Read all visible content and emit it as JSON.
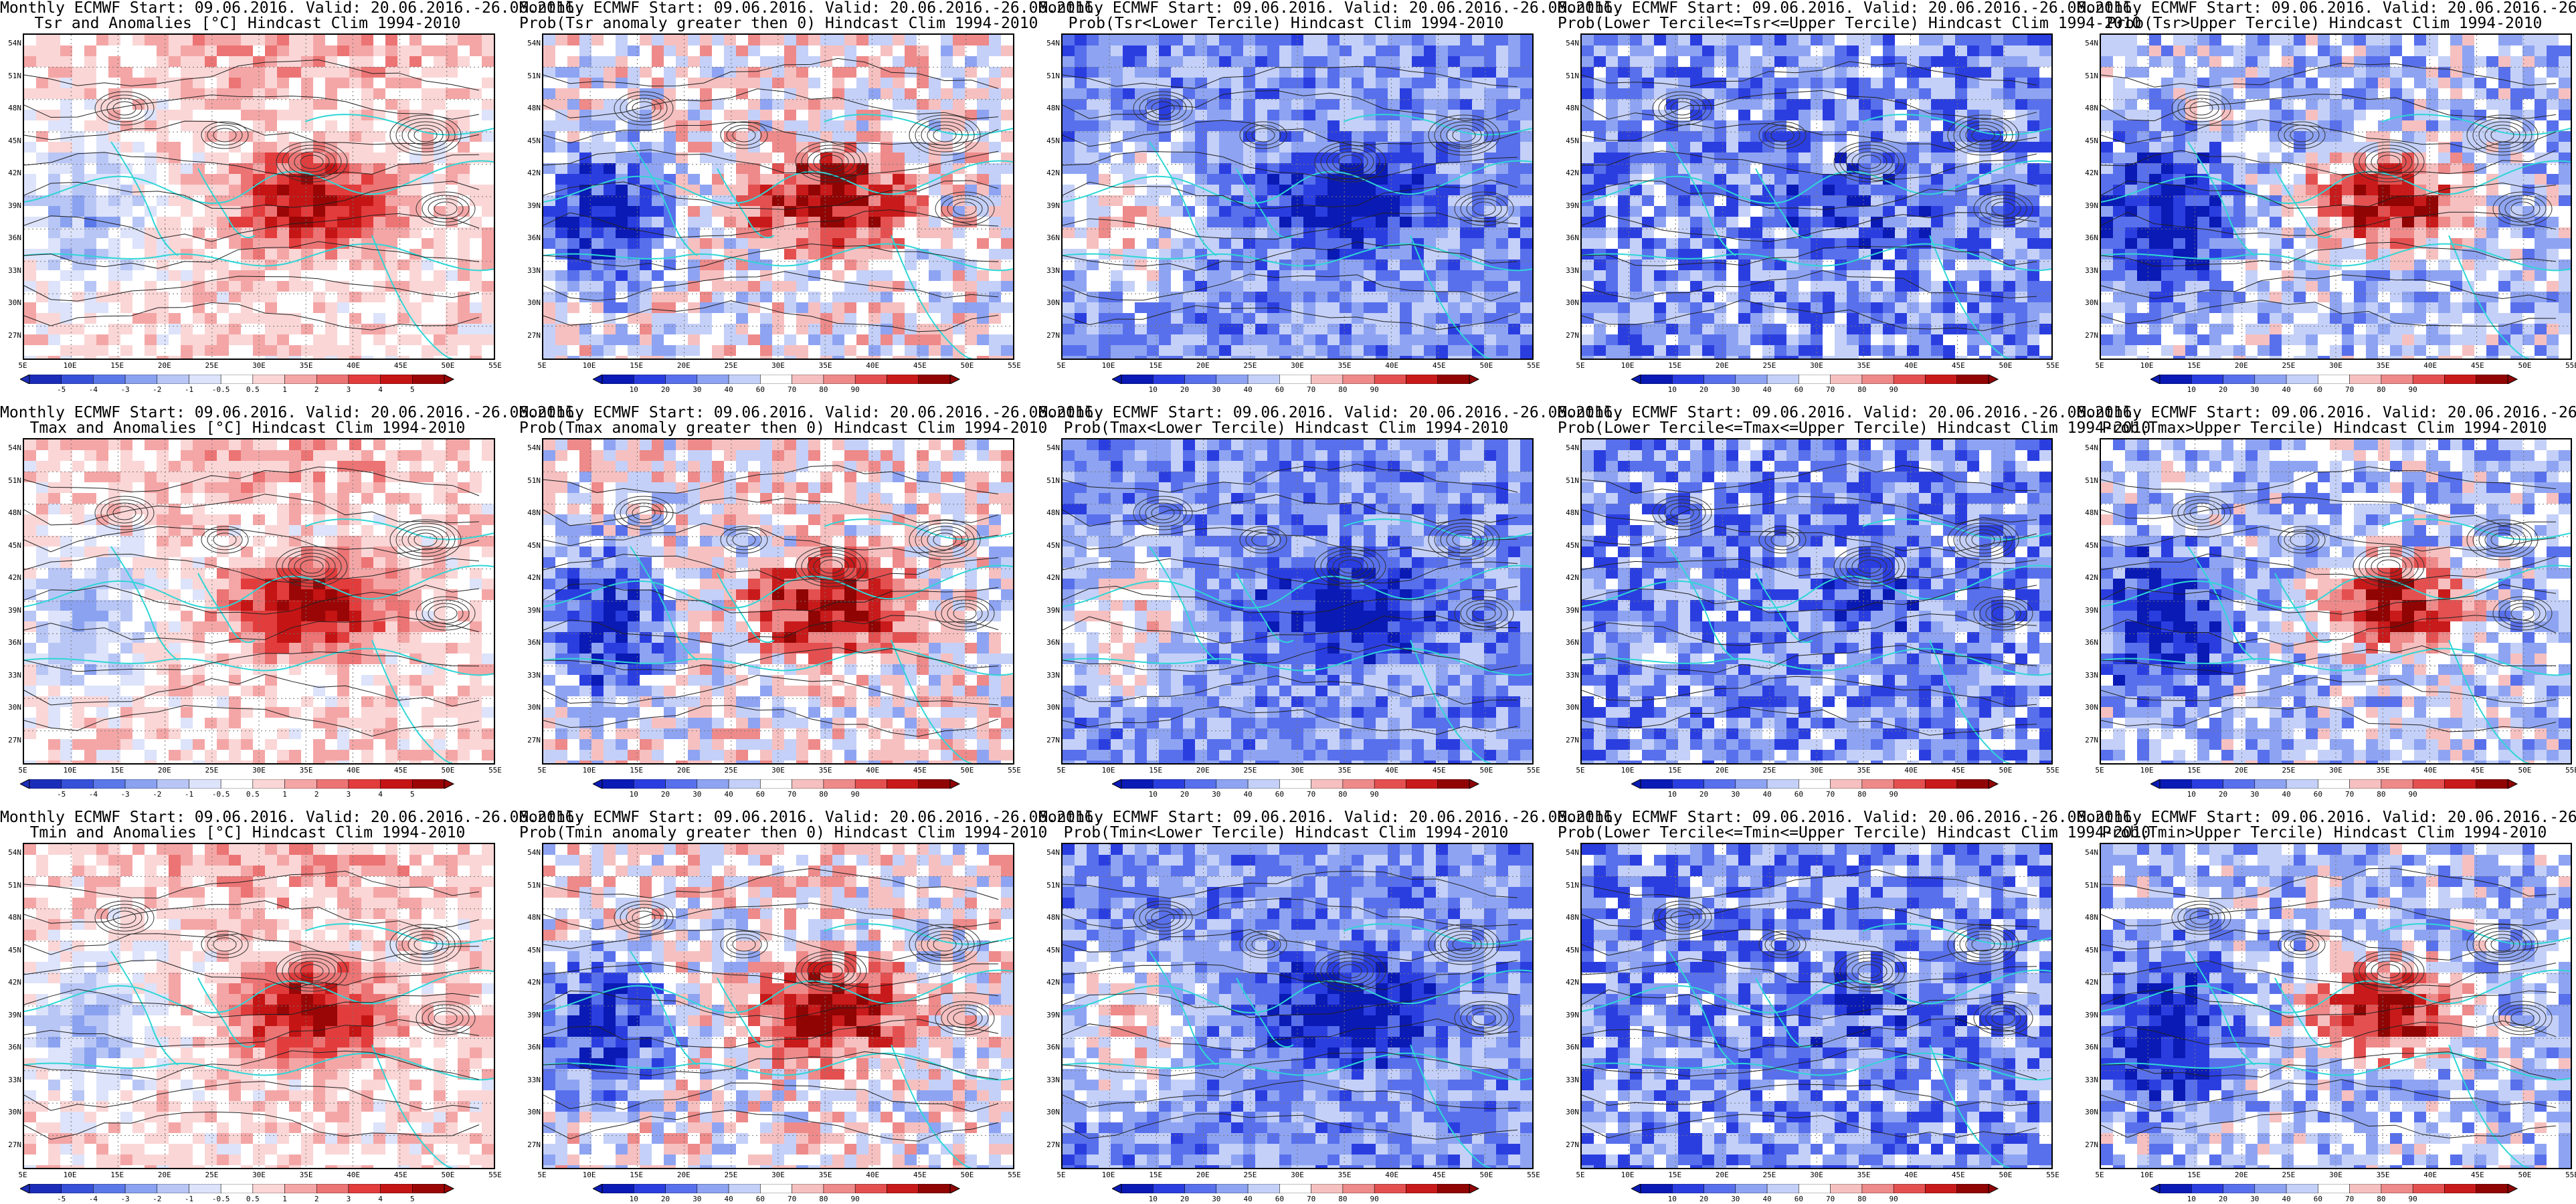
{
  "title_prefix": "Monthly ECMWF Start: 09.06.2016. Valid: 20.06.2016.-26.06.2016.",
  "latitudes": [
    "54N",
    "51N",
    "48N",
    "45N",
    "42N",
    "39N",
    "36N",
    "33N",
    "30N",
    "27N"
  ],
  "longitudes": [
    "5E",
    "10E",
    "15E",
    "20E",
    "25E",
    "30E",
    "35E",
    "40E",
    "45E",
    "50E",
    "55E"
  ],
  "colorbars": {
    "anomaly": {
      "labels": [
        "-5",
        "-4",
        "-3",
        "-2",
        "-1",
        "-0.5",
        "0.5",
        "1",
        "2",
        "3",
        "4",
        "5"
      ],
      "colors": [
        "#1b2db8",
        "#3650d8",
        "#5a78e8",
        "#8aa2f0",
        "#b8c6f6",
        "#dce3fa",
        "#ffffff",
        "#fbd6d6",
        "#f4a6a6",
        "#ec7474",
        "#e23c3c",
        "#c41414",
        "#9a0606"
      ]
    },
    "prob": {
      "labels": [
        "10",
        "20",
        "30",
        "40",
        "60",
        "70",
        "80",
        "90"
      ],
      "colors": [
        "#0a1ab4",
        "#2a3ee0",
        "#5870ec",
        "#8ea4f2",
        "#c4d0f8",
        "#ffffff",
        "#f6c0c0",
        "#ee8a8a",
        "#e45050",
        "#c81a1a",
        "#900404"
      ]
    }
  },
  "panels": [
    {
      "title": "Tsr and Anomalies [°C] Hindcast Clim 1994-2010",
      "cbar": "anomaly",
      "pattern": "anomaly"
    },
    {
      "title": "Prob(Tsr anomaly greater then 0) Hindcast Clim 1994-2010",
      "cbar": "prob",
      "pattern": "warm"
    },
    {
      "title": "Prob(Tsr<Lower Tercile) Hindcast Clim 1994-2010",
      "cbar": "prob",
      "pattern": "lower"
    },
    {
      "title": "Prob(Lower Tercile<=Tsr<=Upper Tercile) Hindcast Clim 1994-2010",
      "cbar": "prob",
      "pattern": "middle"
    },
    {
      "title": "Prob(Tsr>Upper Tercile) Hindcast Clim 1994-2010",
      "cbar": "prob",
      "pattern": "upper"
    },
    {
      "title": "Tmax and Anomalies [°C] Hindcast Clim 1994-2010",
      "cbar": "anomaly",
      "pattern": "anomaly"
    },
    {
      "title": "Prob(Tmax anomaly greater then 0) Hindcast Clim 1994-2010",
      "cbar": "prob",
      "pattern": "warm"
    },
    {
      "title": "Prob(Tmax<Lower Tercile) Hindcast Clim 1994-2010",
      "cbar": "prob",
      "pattern": "lower"
    },
    {
      "title": "Prob(Lower Tercile<=Tmax<=Upper Tercile) Hindcast Clim 1994-2010",
      "cbar": "prob",
      "pattern": "middle"
    },
    {
      "title": "Prob(Tmax>Upper Tercile) Hindcast Clim 1994-2010",
      "cbar": "prob",
      "pattern": "upper"
    },
    {
      "title": "Tmin and Anomalies [°C] Hindcast Clim 1994-2010",
      "cbar": "anomaly",
      "pattern": "anomaly"
    },
    {
      "title": "Prob(Tmin anomaly greater then 0) Hindcast Clim 1994-2010",
      "cbar": "prob",
      "pattern": "warm"
    },
    {
      "title": "Prob(Tmin<Lower Tercile) Hindcast Clim 1994-2010",
      "cbar": "prob",
      "pattern": "lower"
    },
    {
      "title": "Prob(Lower Tercile<=Tmin<=Upper Tercile) Hindcast Clim 1994-2010",
      "cbar": "prob",
      "pattern": "middle"
    },
    {
      "title": "Prob(Tmin>Upper Tercile) Hindcast Clim 1994-2010",
      "cbar": "prob",
      "pattern": "upper"
    }
  ]
}
